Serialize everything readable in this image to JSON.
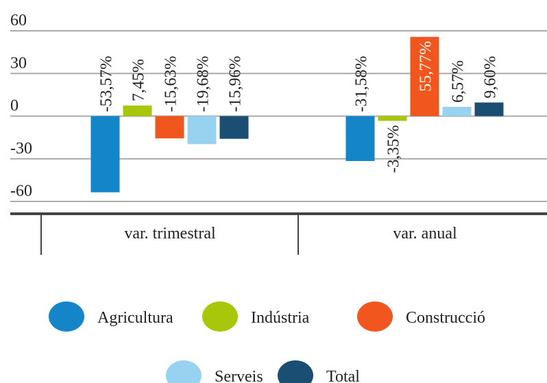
{
  "chart_data": {
    "type": "bar",
    "categories": [
      "var. trimestral",
      "var. anual"
    ],
    "series": [
      {
        "name": "Agricultura",
        "color": "#1485c8",
        "values": [
          -53.57,
          -31.58
        ],
        "value_labels": [
          "-53,57%",
          "-31,58%"
        ]
      },
      {
        "name": "Indústria",
        "color": "#a8c70a",
        "values": [
          7.45,
          -3.35
        ],
        "value_labels": [
          "7,45%",
          "-3,35%"
        ]
      },
      {
        "name": "Construcció",
        "color": "#f0561d",
        "values": [
          -15.63,
          55.77
        ],
        "value_labels": [
          "-15,63%",
          "55,77%"
        ]
      },
      {
        "name": "Serveis",
        "color": "#97d3f0",
        "values": [
          -19.68,
          6.57
        ],
        "value_labels": [
          "-19,68%",
          "6,57%"
        ]
      },
      {
        "name": "Total",
        "color": "#1a4e73",
        "values": [
          -15.96,
          9.6
        ],
        "value_labels": [
          "-15,96%",
          "9,60%"
        ]
      }
    ],
    "ylim": [
      -60,
      60
    ],
    "yticks": [
      60,
      30,
      0,
      -30,
      -60
    ],
    "grid": true
  }
}
